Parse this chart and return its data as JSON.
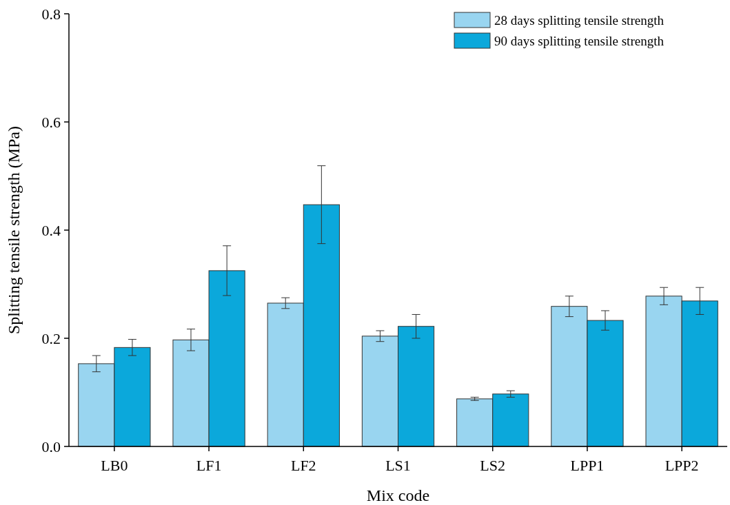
{
  "chart_data": {
    "type": "bar",
    "xlabel": "Mix code",
    "ylabel": "Splitting tensile strength (MPa)",
    "categories": [
      "LB0",
      "LF1",
      "LF2",
      "LS1",
      "LS2",
      "LPP1",
      "LPP2"
    ],
    "series": [
      {
        "name": "28 days splitting tensile strength",
        "color": "#99d5f0",
        "values": [
          0.153,
          0.197,
          0.265,
          0.204,
          0.088,
          0.259,
          0.278
        ],
        "errors": [
          0.015,
          0.02,
          0.01,
          0.01,
          0.003,
          0.019,
          0.016
        ]
      },
      {
        "name": "90 days splitting tensile strength",
        "color": "#0ba8db",
        "values": [
          0.183,
          0.325,
          0.447,
          0.222,
          0.097,
          0.233,
          0.269
        ],
        "errors": [
          0.015,
          0.046,
          0.072,
          0.022,
          0.006,
          0.018,
          0.025
        ]
      }
    ],
    "ylim": [
      0,
      0.8
    ],
    "yticks": [
      {
        "value": 0,
        "label": "0.0"
      },
      0.2,
      0.4,
      0.6,
      0.8
    ],
    "legend": "top right",
    "grid": false
  }
}
